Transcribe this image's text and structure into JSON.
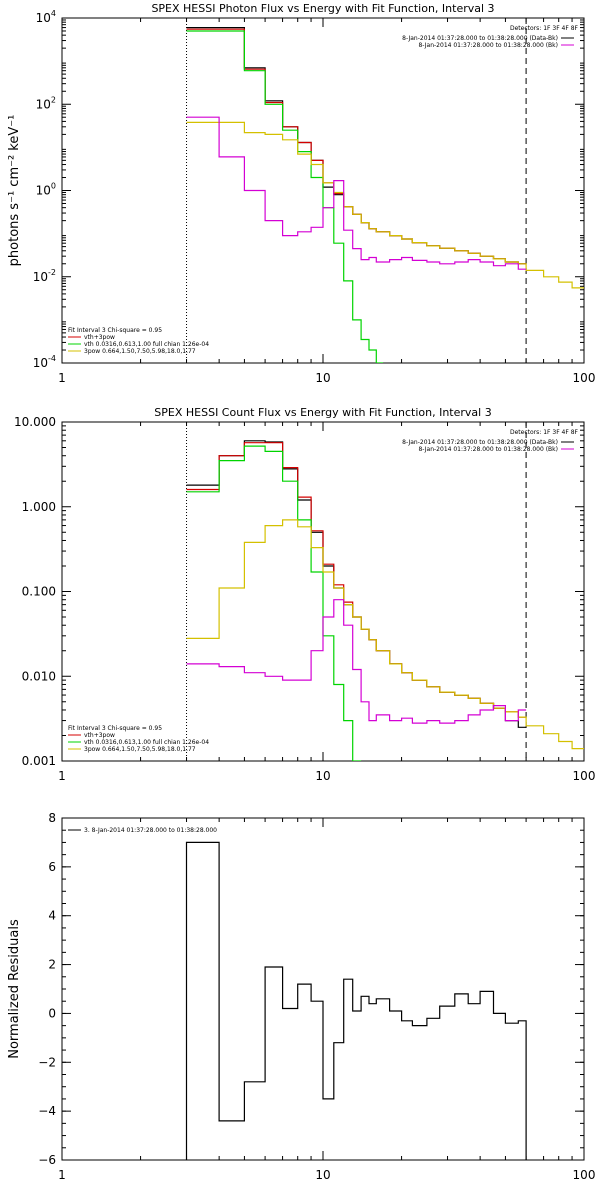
{
  "chart_data": [
    {
      "type": "line",
      "title": "SPEX HESSI Photon Flux vs Energy with Fit Function, Interval 3",
      "xlabel": "",
      "ylabel": "photons s⁻¹ cm⁻² keV⁻¹",
      "xscale": "log",
      "yscale": "log",
      "xlim": [
        1,
        100
      ],
      "ylim": [
        0.0001,
        10000
      ],
      "x_ticks": [
        {
          "value": 1,
          "label": "1"
        },
        {
          "value": 10,
          "label": "10"
        },
        {
          "value": 100,
          "label": "100"
        }
      ],
      "y_ticks": [
        {
          "value": 0.0001,
          "base": "10",
          "exp": "-4"
        },
        {
          "value": 0.01,
          "base": "10",
          "exp": "-2"
        },
        {
          "value": 1,
          "base": "10",
          "exp": "0"
        },
        {
          "value": 100,
          "base": "10",
          "exp": "2"
        },
        {
          "value": 10000,
          "base": "10",
          "exp": "4"
        }
      ],
      "legend_right": {
        "header": "Detectors: 1F 3F 4F 8F",
        "entries": [
          {
            "label": "8-Jan-2014 01:37:28.000 to 01:38:28.000 (Data-Bk)",
            "color": "#000000"
          },
          {
            "label": "8-Jan-2014 01:37:28.000 to 01:38:28.000 (Bk)",
            "color": "#d400d4"
          }
        ]
      },
      "legend_left": {
        "header": "Fit Interval 3   Chi-square = 0.95",
        "entries": [
          {
            "label": "vth+3pow",
            "color": "#d40000"
          },
          {
            "label": "vth 0.0316,0.613,1.00  full chian 1.26e-04",
            "color": "#00d400"
          },
          {
            "label": "3pow 0.664,1.50,7.50,5.98,18.0,1.77",
            "color": "#d4c000"
          }
        ]
      },
      "vlines": [
        {
          "x": 3,
          "style": "dotted",
          "color": "#000000"
        },
        {
          "x": 60,
          "style": "dashed",
          "color": "#000000"
        }
      ],
      "series": [
        {
          "name": "Data-Bk",
          "color": "#000000",
          "step": true,
          "edges": [
            3,
            4,
            5,
            6,
            7,
            8,
            9,
            10,
            11,
            12,
            13,
            14,
            15,
            16,
            18,
            20,
            22,
            25,
            28,
            32,
            36,
            40,
            45,
            50,
            56,
            60
          ],
          "values": [
            6000,
            6000,
            700,
            120,
            30,
            13,
            5,
            1.2,
            0.8,
            0.42,
            0.28,
            0.18,
            0.13,
            0.11,
            0.09,
            0.075,
            0.062,
            0.052,
            0.046,
            0.04,
            0.035,
            0.03,
            0.026,
            0.022,
            0.02
          ]
        },
        {
          "name": "vth+3pow",
          "color": "#d40000",
          "step": true,
          "edges": [
            3,
            4,
            5,
            6,
            7,
            8,
            9,
            10,
            11,
            12,
            13,
            14,
            15,
            16,
            18,
            20,
            22,
            25,
            28,
            32,
            36,
            40,
            45,
            50,
            56,
            60
          ],
          "values": [
            5500,
            5500,
            650,
            110,
            30,
            13,
            5,
            1.5,
            0.85,
            0.42,
            0.28,
            0.18,
            0.13,
            0.11,
            0.09,
            0.075,
            0.062,
            0.052,
            0.046,
            0.04,
            0.035,
            0.03,
            0.026,
            0.022,
            0.02
          ]
        },
        {
          "name": "vth",
          "color": "#00d400",
          "step": true,
          "edges": [
            3,
            4,
            5,
            6,
            7,
            8,
            9,
            10,
            11,
            12,
            13,
            14,
            15,
            16,
            17
          ],
          "values": [
            5000,
            5000,
            600,
            100,
            25,
            8,
            2,
            0.4,
            0.06,
            0.008,
            0.001,
            0.00035,
            0.0002,
            0.0001
          ]
        },
        {
          "name": "3pow",
          "color": "#d4c000",
          "step": true,
          "edges": [
            3,
            4,
            5,
            6,
            7,
            8,
            9,
            10,
            11,
            12,
            13,
            14,
            15,
            16,
            18,
            20,
            22,
            25,
            28,
            32,
            36,
            40,
            45,
            50,
            56,
            60,
            70,
            80,
            90,
            100
          ],
          "values": [
            38,
            38,
            22,
            20,
            15,
            7,
            4,
            1.5,
            0.9,
            0.42,
            0.28,
            0.18,
            0.13,
            0.11,
            0.09,
            0.075,
            0.062,
            0.052,
            0.046,
            0.04,
            0.035,
            0.03,
            0.026,
            0.022,
            0.02,
            0.014,
            0.01,
            0.0075,
            0.0055
          ]
        },
        {
          "name": "Bk",
          "color": "#d400d4",
          "step": true,
          "edges": [
            3,
            4,
            5,
            6,
            7,
            8,
            9,
            10,
            11,
            12,
            13,
            14,
            15,
            16,
            18,
            20,
            22,
            25,
            28,
            32,
            36,
            40,
            45,
            50,
            56,
            60
          ],
          "values": [
            50,
            6,
            1,
            0.2,
            0.09,
            0.11,
            0.14,
            0.4,
            1.7,
            0.12,
            0.045,
            0.025,
            0.028,
            0.022,
            0.025,
            0.028,
            0.024,
            0.022,
            0.02,
            0.022,
            0.025,
            0.022,
            0.018,
            0.02,
            0.015
          ]
        }
      ]
    },
    {
      "type": "line",
      "title": "SPEX HESSI Count Flux vs Energy with Fit Function, Interval 3",
      "xlabel": "",
      "ylabel": "",
      "xscale": "log",
      "yscale": "log",
      "xlim": [
        1,
        100
      ],
      "ylim": [
        0.001,
        10
      ],
      "x_ticks": [
        {
          "value": 1,
          "label": "1"
        },
        {
          "value": 10,
          "label": "10"
        },
        {
          "value": 100,
          "label": "100"
        }
      ],
      "y_ticks": [
        {
          "value": 0.001,
          "label": "0.001"
        },
        {
          "value": 0.01,
          "label": "0.010"
        },
        {
          "value": 0.1,
          "label": "0.100"
        },
        {
          "value": 1,
          "label": "1.000"
        },
        {
          "value": 10,
          "label": "10.000"
        }
      ],
      "legend_right": {
        "header": "Detectors: 1F 3F 4F 8F",
        "entries": [
          {
            "label": "8-Jan-2014 01:37:28.000 to 01:38:28.000 (Data-Bk)",
            "color": "#000000"
          },
          {
            "label": "8-Jan-2014 01:37:28.000 to 01:38:28.000 (Bk)",
            "color": "#d400d4"
          }
        ]
      },
      "legend_left": {
        "header": "Fit Interval 3   Chi-square = 0.95",
        "entries": [
          {
            "label": "vth+3pow",
            "color": "#d40000"
          },
          {
            "label": "vth 0.0316,0.613,1.00  full chian 1.26e-04",
            "color": "#00d400"
          },
          {
            "label": "3pow 0.664,1.50,7.50,5.98,18.0,1.77",
            "color": "#d4c000"
          }
        ]
      },
      "vlines": [
        {
          "x": 3,
          "style": "dotted",
          "color": "#000000"
        },
        {
          "x": 60,
          "style": "dashed",
          "color": "#000000"
        }
      ],
      "series": [
        {
          "name": "Data-Bk",
          "color": "#000000",
          "step": true,
          "edges": [
            3,
            4,
            5,
            6,
            7,
            8,
            9,
            10,
            11,
            12,
            13,
            14,
            15,
            16,
            18,
            20,
            22,
            25,
            28,
            32,
            36,
            40,
            45,
            50,
            56,
            60
          ],
          "values": [
            1.8,
            4,
            6,
            5.8,
            2.8,
            1.2,
            0.5,
            0.2,
            0.11,
            0.07,
            0.05,
            0.036,
            0.027,
            0.02,
            0.014,
            0.011,
            0.009,
            0.0075,
            0.0065,
            0.006,
            0.0055,
            0.0048,
            0.0042,
            0.003,
            0.0025
          ]
        },
        {
          "name": "vth+3pow",
          "color": "#d40000",
          "step": true,
          "edges": [
            3,
            4,
            5,
            6,
            7,
            8,
            9,
            10,
            11,
            12,
            13,
            14,
            15,
            16,
            18,
            20,
            22,
            25,
            28,
            32,
            36,
            40,
            45,
            50,
            56,
            60
          ],
          "values": [
            1.6,
            4,
            5.7,
            5.7,
            2.9,
            1.3,
            0.52,
            0.21,
            0.12,
            0.075,
            0.05,
            0.036,
            0.027,
            0.02,
            0.014,
            0.011,
            0.009,
            0.0075,
            0.0065,
            0.006,
            0.0055,
            0.0048,
            0.0042,
            0.0038,
            0.0033
          ]
        },
        {
          "name": "vth",
          "color": "#00d400",
          "step": true,
          "edges": [
            3,
            4,
            5,
            6,
            7,
            8,
            9,
            10,
            11,
            12,
            13,
            14
          ],
          "values": [
            1.5,
            3.5,
            5.2,
            4.5,
            2,
            0.7,
            0.17,
            0.03,
            0.008,
            0.003,
            0.001
          ]
        },
        {
          "name": "3pow",
          "color": "#d4c000",
          "step": true,
          "edges": [
            3,
            4,
            5,
            6,
            7,
            8,
            9,
            10,
            11,
            12,
            13,
            14,
            15,
            16,
            18,
            20,
            22,
            25,
            28,
            32,
            36,
            40,
            45,
            50,
            56,
            60,
            70,
            80,
            90,
            100
          ],
          "values": [
            0.028,
            0.11,
            0.38,
            0.6,
            0.7,
            0.58,
            0.33,
            0.17,
            0.11,
            0.07,
            0.05,
            0.036,
            0.027,
            0.02,
            0.014,
            0.011,
            0.009,
            0.0075,
            0.0065,
            0.006,
            0.0055,
            0.0048,
            0.0042,
            0.0038,
            0.0033,
            0.0026,
            0.0021,
            0.0017,
            0.0014
          ]
        },
        {
          "name": "Bk",
          "color": "#d400d4",
          "step": true,
          "edges": [
            3,
            4,
            5,
            6,
            7,
            8,
            9,
            10,
            11,
            12,
            13,
            14,
            15,
            16,
            18,
            20,
            22,
            25,
            28,
            32,
            36,
            40,
            45,
            50,
            56,
            60
          ],
          "values": [
            0.014,
            0.013,
            0.011,
            0.01,
            0.009,
            0.009,
            0.02,
            0.05,
            0.08,
            0.04,
            0.012,
            0.005,
            0.003,
            0.0035,
            0.003,
            0.0032,
            0.0028,
            0.003,
            0.0028,
            0.003,
            0.0035,
            0.004,
            0.0045,
            0.003,
            0.004
          ]
        }
      ]
    },
    {
      "type": "line",
      "title": "",
      "xlabel": "",
      "ylabel": "Normalized Residuals",
      "xscale": "log",
      "yscale": "linear",
      "xlim": [
        1,
        100
      ],
      "ylim": [
        -6,
        8
      ],
      "x_ticks": [
        {
          "value": 1,
          "label": "1"
        },
        {
          "value": 10,
          "label": "10"
        },
        {
          "value": 100,
          "label": "100"
        }
      ],
      "y_ticks": [
        {
          "value": -6,
          "label": "−6"
        },
        {
          "value": -4,
          "label": "−4"
        },
        {
          "value": -2,
          "label": "−2"
        },
        {
          "value": 0,
          "label": "0"
        },
        {
          "value": 2,
          "label": "2"
        },
        {
          "value": 4,
          "label": "4"
        },
        {
          "value": 6,
          "label": "6"
        },
        {
          "value": 8,
          "label": "8"
        }
      ],
      "legend_left": {
        "header": "",
        "entries": [
          {
            "label": "3.  8-Jan-2014 01:37:28.000 to 01:38:28.000",
            "color": "#000000"
          }
        ]
      },
      "vlines": [],
      "series": [
        {
          "name": "",
          "color": "#000000",
          "step": true,
          "drop_to_bottom": true,
          "edges": [
            3,
            4,
            5,
            6,
            7,
            8,
            9,
            10,
            11,
            12,
            13,
            14,
            15,
            16,
            18,
            20,
            22,
            25,
            28,
            32,
            36,
            40,
            45,
            50,
            56,
            60
          ],
          "values": [
            7,
            -4.4,
            -2.8,
            1.9,
            0.2,
            1.2,
            0.5,
            -3.5,
            -1.2,
            1.4,
            0.1,
            0.7,
            0.4,
            0.6,
            0.1,
            -0.3,
            -0.5,
            -0.2,
            0.3,
            0.8,
            0.4,
            0.9,
            0,
            -0.4,
            -0.3
          ]
        }
      ]
    }
  ]
}
